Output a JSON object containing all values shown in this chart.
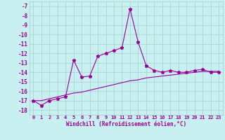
{
  "title": "",
  "xlabel": "Windchill (Refroidissement éolien,°C)",
  "bg_color": "#c8f0f0",
  "grid_color": "#a8cece",
  "line_color": "#990099",
  "x_data": [
    0,
    1,
    2,
    3,
    4,
    5,
    6,
    7,
    8,
    9,
    10,
    11,
    12,
    13,
    14,
    15,
    16,
    17,
    18,
    19,
    20,
    21,
    22,
    23
  ],
  "y_line1": [
    -17.0,
    -17.5,
    -17.0,
    -16.8,
    -16.6,
    -12.7,
    -14.5,
    -14.4,
    -12.3,
    -12.0,
    -11.7,
    -11.4,
    -7.3,
    -10.8,
    -13.3,
    -13.8,
    -14.0,
    -13.8,
    -14.0,
    -14.0,
    -13.8,
    -13.7,
    -14.0,
    -14.0
  ],
  "y_line2": [
    -17.0,
    -17.0,
    -16.8,
    -16.6,
    -16.4,
    -16.2,
    -16.1,
    -15.9,
    -15.7,
    -15.5,
    -15.3,
    -15.1,
    -14.9,
    -14.8,
    -14.6,
    -14.5,
    -14.4,
    -14.3,
    -14.2,
    -14.1,
    -14.0,
    -13.9,
    -13.9,
    -13.9
  ],
  "ylim": [
    -18.5,
    -6.5
  ],
  "xlim": [
    -0.5,
    23.5
  ],
  "yticks": [
    -7,
    -8,
    -9,
    -10,
    -11,
    -12,
    -13,
    -14,
    -15,
    -16,
    -17,
    -18
  ],
  "xticks": [
    0,
    1,
    2,
    3,
    4,
    5,
    6,
    7,
    8,
    9,
    10,
    11,
    12,
    13,
    14,
    15,
    16,
    17,
    18,
    19,
    20,
    21,
    22,
    23
  ],
  "xtick_labels": [
    "0",
    "1",
    "2",
    "3",
    "4",
    "5",
    "6",
    "7",
    "8",
    "9",
    "10",
    "11",
    "12",
    "13",
    "14",
    "15",
    "16",
    "17",
    "18",
    "19",
    "20",
    "21",
    "22",
    "23"
  ]
}
